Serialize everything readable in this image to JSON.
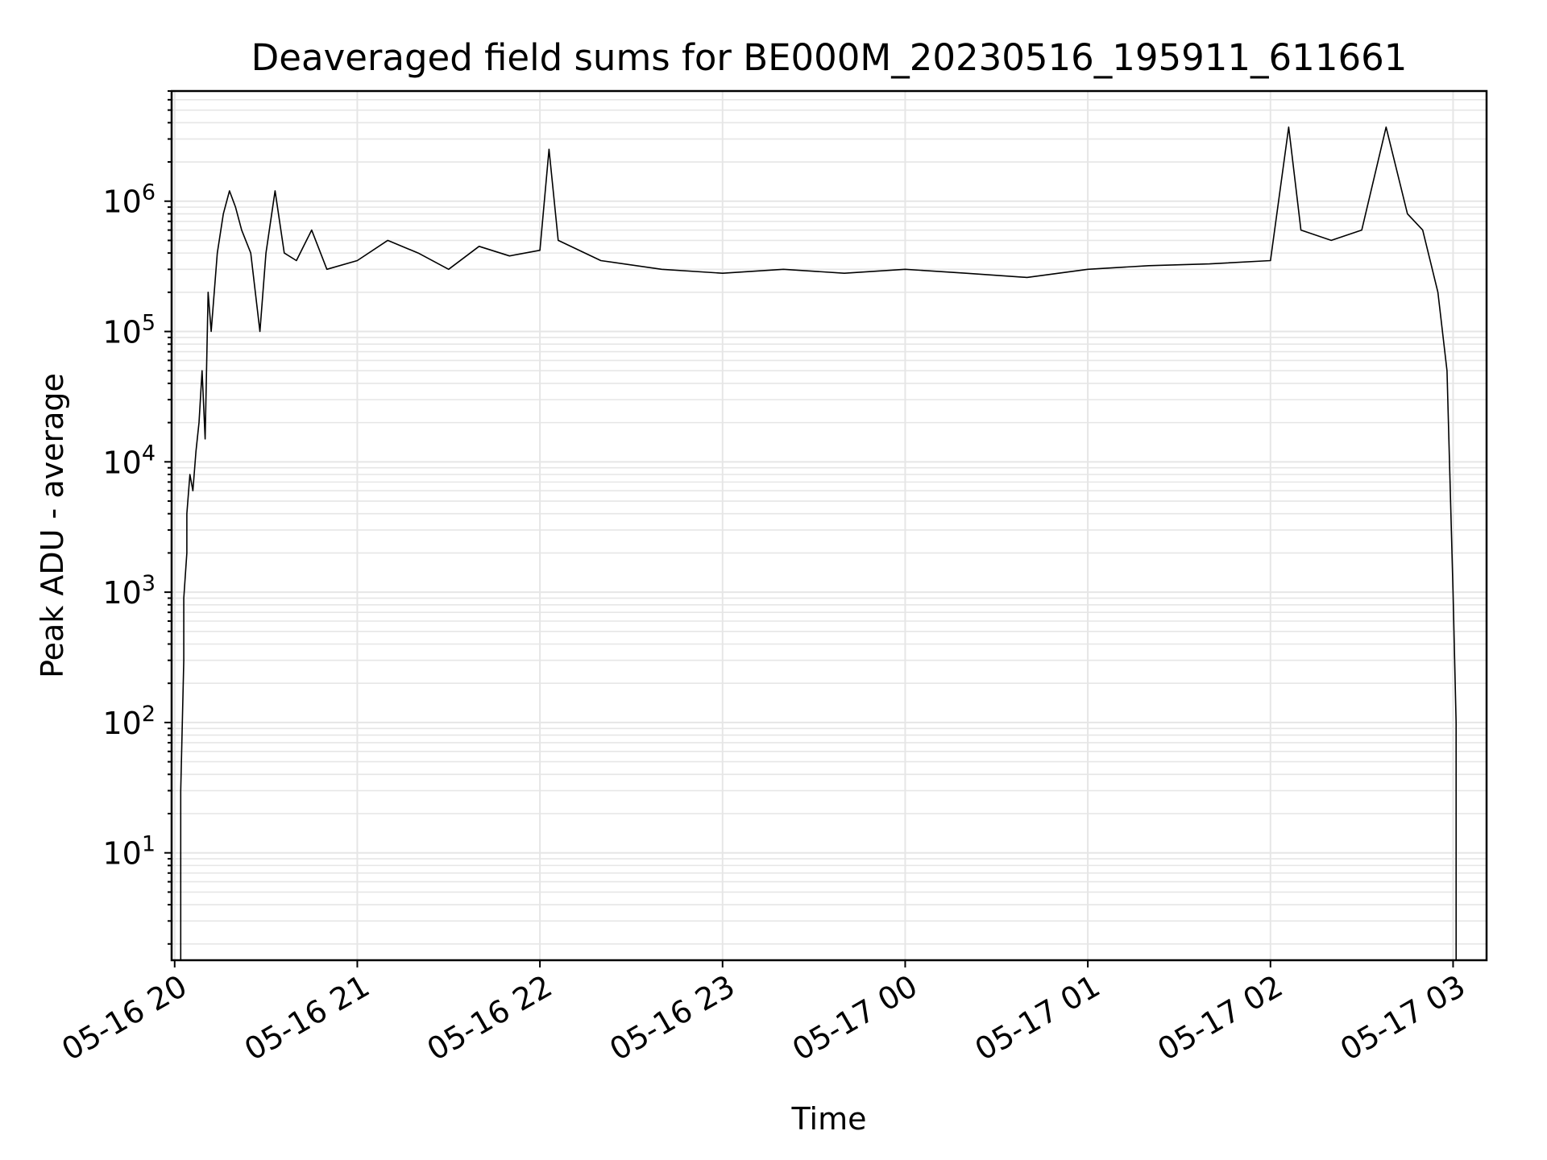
{
  "chart_data": {
    "type": "line",
    "title": "Deaveraged field sums for BE000M_20230516_195911_611661",
    "xlabel": "Time",
    "ylabel": "Peak ADU - average",
    "yscale": "log",
    "ylim": [
      1.5,
      7000000
    ],
    "xlim": [
      "2023-05-16 19:59",
      "2023-05-17 03:11"
    ],
    "grid": true,
    "line_color": "#000000",
    "grid_color": "#e6e6e6",
    "x_ticks": [
      {
        "label": "05-16 20",
        "value": "2023-05-16 20:00"
      },
      {
        "label": "05-16 21",
        "value": "2023-05-16 21:00"
      },
      {
        "label": "05-16 22",
        "value": "2023-05-16 22:00"
      },
      {
        "label": "05-16 23",
        "value": "2023-05-16 23:00"
      },
      {
        "label": "05-17 00",
        "value": "2023-05-17 00:00"
      },
      {
        "label": "05-17 01",
        "value": "2023-05-17 01:00"
      },
      {
        "label": "05-17 02",
        "value": "2023-05-17 02:00"
      },
      {
        "label": "05-17 03",
        "value": "2023-05-17 03:00"
      }
    ],
    "y_ticks": [
      {
        "base": "10",
        "exp": "1",
        "value": 10
      },
      {
        "base": "10",
        "exp": "2",
        "value": 100
      },
      {
        "base": "10",
        "exp": "3",
        "value": 1000
      },
      {
        "base": "10",
        "exp": "4",
        "value": 10000
      },
      {
        "base": "10",
        "exp": "5",
        "value": 100000
      },
      {
        "base": "10",
        "exp": "6",
        "value": 1000000
      }
    ],
    "series": [
      {
        "color": "#000000",
        "points": [
          [
            "2023-05-16 20:02",
            1.5
          ],
          [
            "2023-05-16 20:02",
            30
          ],
          [
            "2023-05-16 20:03",
            300
          ],
          [
            "2023-05-16 20:03",
            900
          ],
          [
            "2023-05-16 20:04",
            2000
          ],
          [
            "2023-05-16 20:04",
            4000
          ],
          [
            "2023-05-16 20:05",
            8000
          ],
          [
            "2023-05-16 20:06",
            6000
          ],
          [
            "2023-05-16 20:07",
            12000
          ],
          [
            "2023-05-16 20:08",
            20000
          ],
          [
            "2023-05-16 20:09",
            50000
          ],
          [
            "2023-05-16 20:10",
            15000
          ],
          [
            "2023-05-16 20:11",
            200000
          ],
          [
            "2023-05-16 20:12",
            100000
          ],
          [
            "2023-05-16 20:14",
            400000
          ],
          [
            "2023-05-16 20:16",
            800000
          ],
          [
            "2023-05-16 20:18",
            1200000
          ],
          [
            "2023-05-16 20:20",
            900000
          ],
          [
            "2023-05-16 20:22",
            600000
          ],
          [
            "2023-05-16 20:25",
            400000
          ],
          [
            "2023-05-16 20:28",
            100000
          ],
          [
            "2023-05-16 20:30",
            400000
          ],
          [
            "2023-05-16 20:33",
            1200000
          ],
          [
            "2023-05-16 20:36",
            400000
          ],
          [
            "2023-05-16 20:40",
            350000
          ],
          [
            "2023-05-16 20:45",
            600000
          ],
          [
            "2023-05-16 20:50",
            300000
          ],
          [
            "2023-05-16 21:00",
            350000
          ],
          [
            "2023-05-16 21:10",
            500000
          ],
          [
            "2023-05-16 21:20",
            400000
          ],
          [
            "2023-05-16 21:30",
            300000
          ],
          [
            "2023-05-16 21:40",
            450000
          ],
          [
            "2023-05-16 21:50",
            380000
          ],
          [
            "2023-05-16 22:00",
            420000
          ],
          [
            "2023-05-16 22:03",
            2500000
          ],
          [
            "2023-05-16 22:06",
            500000
          ],
          [
            "2023-05-16 22:20",
            350000
          ],
          [
            "2023-05-16 22:40",
            300000
          ],
          [
            "2023-05-16 23:00",
            280000
          ],
          [
            "2023-05-16 23:20",
            300000
          ],
          [
            "2023-05-16 23:40",
            280000
          ],
          [
            "2023-05-17 00:00",
            300000
          ],
          [
            "2023-05-17 00:20",
            280000
          ],
          [
            "2023-05-17 00:40",
            260000
          ],
          [
            "2023-05-17 01:00",
            300000
          ],
          [
            "2023-05-17 01:20",
            320000
          ],
          [
            "2023-05-17 01:40",
            330000
          ],
          [
            "2023-05-17 02:00",
            350000
          ],
          [
            "2023-05-17 02:06",
            3700000
          ],
          [
            "2023-05-17 02:10",
            600000
          ],
          [
            "2023-05-17 02:20",
            500000
          ],
          [
            "2023-05-17 02:30",
            600000
          ],
          [
            "2023-05-17 02:38",
            3700000
          ],
          [
            "2023-05-17 02:45",
            800000
          ],
          [
            "2023-05-17 02:50",
            600000
          ],
          [
            "2023-05-17 02:55",
            200000
          ],
          [
            "2023-05-17 02:58",
            50000
          ],
          [
            "2023-05-17 03:00",
            1000
          ],
          [
            "2023-05-17 03:01",
            100
          ],
          [
            "2023-05-17 03:01",
            1.5
          ]
        ]
      }
    ]
  }
}
